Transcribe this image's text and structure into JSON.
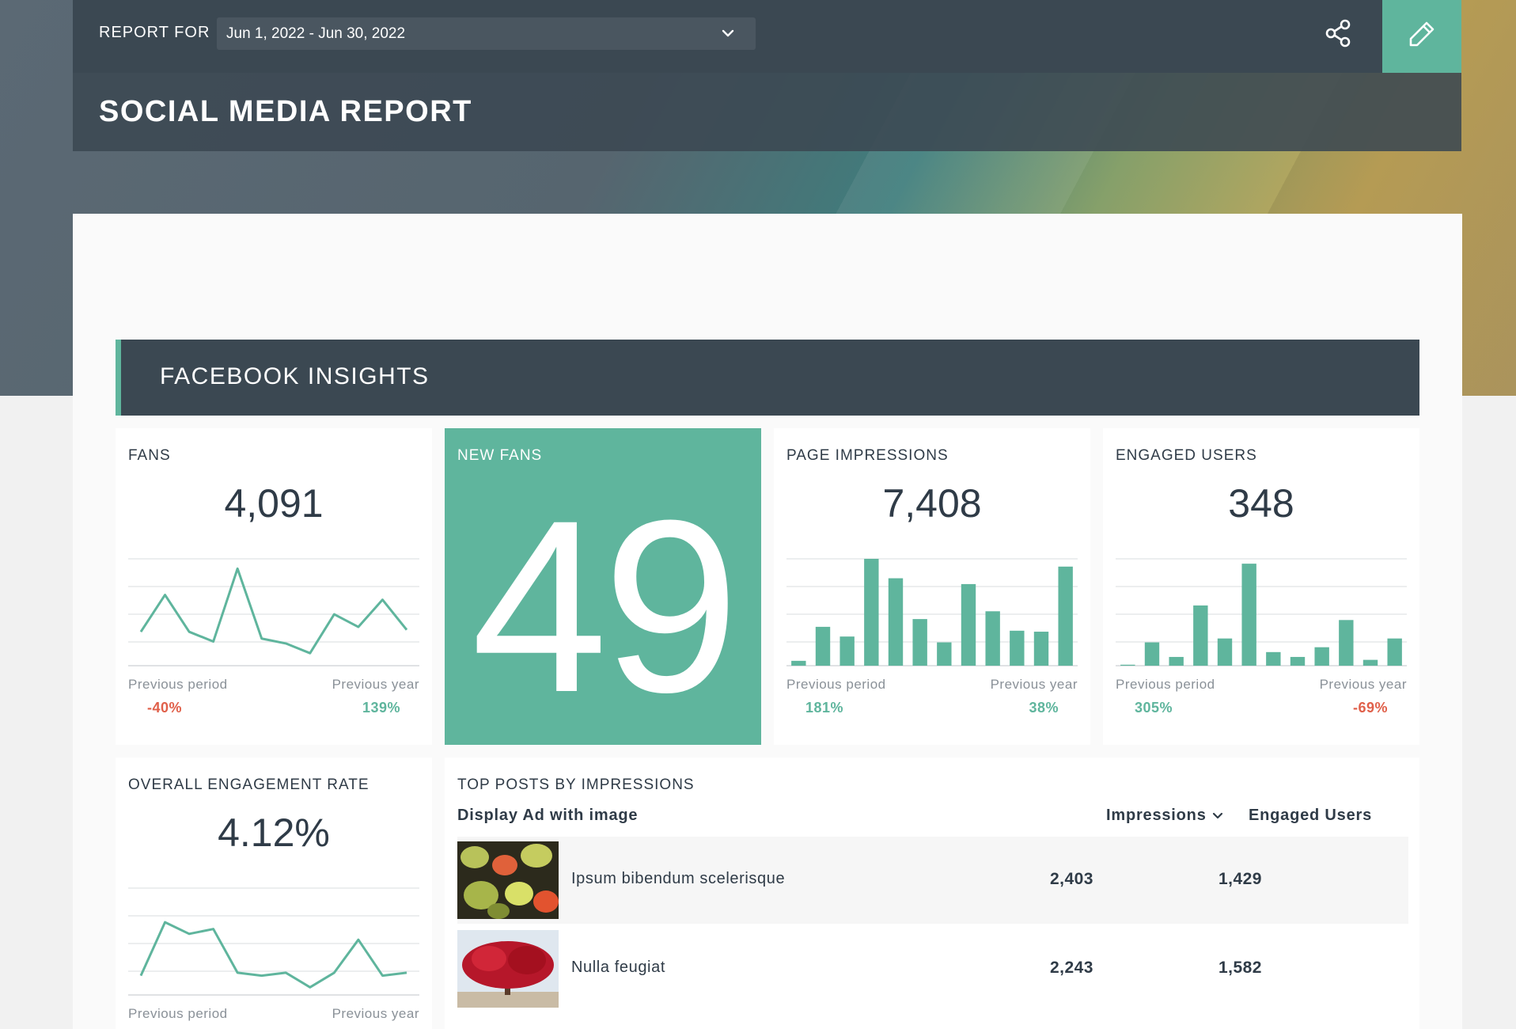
{
  "header": {
    "report_for_label": "REPORT FOR",
    "date_range": "Jun 1, 2022 - Jun 30, 2022",
    "title": "SOCIAL MEDIA REPORT",
    "accent_color": "#5fb59d",
    "bar_color": "#3b4852"
  },
  "section": {
    "title": "FACEBOOK INSIGHTS"
  },
  "cards": {
    "fans": {
      "title": "FANS",
      "value": "4,091",
      "prev_period_label": "Previous period",
      "prev_period_value": "-40%",
      "prev_year_label": "Previous year",
      "prev_year_value": "139%",
      "spark_type": "line",
      "spark_values": [
        3,
        6.8,
        3,
        2,
        9.5,
        2.3,
        1.8,
        0.8,
        4.8,
        3.5,
        6.3,
        3.2
      ]
    },
    "new_fans": {
      "title": "NEW FANS",
      "value": "49"
    },
    "page_impressions": {
      "title": "PAGE IMPRESSIONS",
      "value": "7,408",
      "prev_period_label": "Previous period",
      "prev_period_value": "181%",
      "prev_year_label": "Previous year",
      "prev_year_value": "38%",
      "spark_type": "bar",
      "spark_values": [
        0.5,
        4,
        3,
        11,
        9,
        4.8,
        2.4,
        8.4,
        5.6,
        3.6,
        3.5,
        10.2
      ]
    },
    "engaged_users": {
      "title": "ENGAGED USERS",
      "value": "348",
      "prev_period_label": "Previous period",
      "prev_period_value": "305%",
      "prev_year_label": "Previous year",
      "prev_year_value": "-69%",
      "spark_type": "bar",
      "spark_values": [
        0.1,
        2.4,
        0.9,
        6.2,
        2.8,
        10.5,
        1.4,
        0.9,
        1.9,
        4.7,
        0.6,
        2.8
      ]
    },
    "engagement_rate": {
      "title": "OVERALL ENGAGEMENT RATE",
      "value": "4.12%",
      "prev_period_label": "Previous period",
      "prev_period_value": "",
      "prev_year_label": "Previous year",
      "prev_year_value": "",
      "spark_type": "line",
      "spark_values": [
        1.5,
        7,
        5.8,
        6.3,
        1.8,
        1.5,
        1.8,
        0.3,
        1.8,
        5.2,
        1.5,
        1.8
      ]
    }
  },
  "top_posts": {
    "title": "TOP POSTS BY IMPRESSIONS",
    "col_post": "Display Ad with image",
    "col_impressions": "Impressions",
    "col_engaged": "Engaged Users",
    "rows": [
      {
        "name": "Ipsum bibendum scelerisque",
        "impressions": "2,403",
        "engaged": "1,429",
        "thumb": "leaves"
      },
      {
        "name": "Nulla feugiat",
        "impressions": "2,243",
        "engaged": "1,582",
        "thumb": "red-tree"
      }
    ]
  }
}
